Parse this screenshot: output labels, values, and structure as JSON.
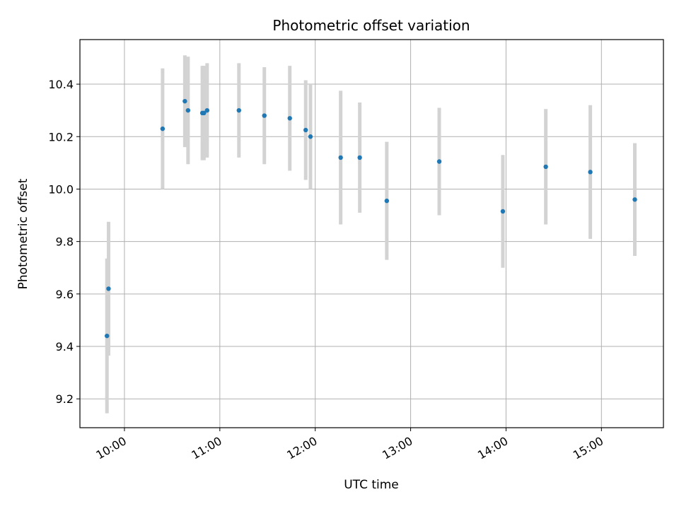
{
  "chart_data": {
    "type": "scatter",
    "title": "Photometric offset variation",
    "xlabel": "UTC time",
    "ylabel": "Photometric offset",
    "x_ticks": [
      "10:00",
      "11:00",
      "12:00",
      "13:00",
      "14:00",
      "15:00"
    ],
    "y_ticks": [
      "9.2",
      "9.4",
      "9.6",
      "9.8",
      "10.0",
      "10.2",
      "10.4"
    ],
    "xlim": [
      "09:32",
      "15:39"
    ],
    "ylim": [
      9.09,
      10.57
    ],
    "grid": true,
    "colors": {
      "point": "#1f77b4",
      "errorbar": "#d3d3d3",
      "grid": "#b0b0b0"
    },
    "points": [
      {
        "t": "09:49",
        "y": 9.44,
        "err": 0.295
      },
      {
        "t": "09:50",
        "y": 9.62,
        "err": 0.255
      },
      {
        "t": "10:24",
        "y": 10.23,
        "err": 0.23
      },
      {
        "t": "10:38",
        "y": 10.335,
        "err": 0.175
      },
      {
        "t": "10:40",
        "y": 10.3,
        "err": 0.205
      },
      {
        "t": "10:49",
        "y": 10.29,
        "err": 0.18
      },
      {
        "t": "10:50",
        "y": 10.29,
        "err": 0.18
      },
      {
        "t": "10:52",
        "y": 10.3,
        "err": 0.18
      },
      {
        "t": "11:12",
        "y": 10.3,
        "err": 0.18
      },
      {
        "t": "11:28",
        "y": 10.28,
        "err": 0.185
      },
      {
        "t": "11:44",
        "y": 10.27,
        "err": 0.2
      },
      {
        "t": "11:54",
        "y": 10.225,
        "err": 0.19
      },
      {
        "t": "11:57",
        "y": 10.2,
        "err": 0.2
      },
      {
        "t": "12:16",
        "y": 10.12,
        "err": 0.255
      },
      {
        "t": "12:28",
        "y": 10.12,
        "err": 0.21
      },
      {
        "t": "12:45",
        "y": 9.955,
        "err": 0.225
      },
      {
        "t": "13:18",
        "y": 10.105,
        "err": 0.205
      },
      {
        "t": "13:58",
        "y": 9.915,
        "err": 0.215
      },
      {
        "t": "14:25",
        "y": 10.085,
        "err": 0.22
      },
      {
        "t": "14:53",
        "y": 10.065,
        "err": 0.255
      },
      {
        "t": "15:21",
        "y": 9.96,
        "err": 0.215
      }
    ]
  }
}
